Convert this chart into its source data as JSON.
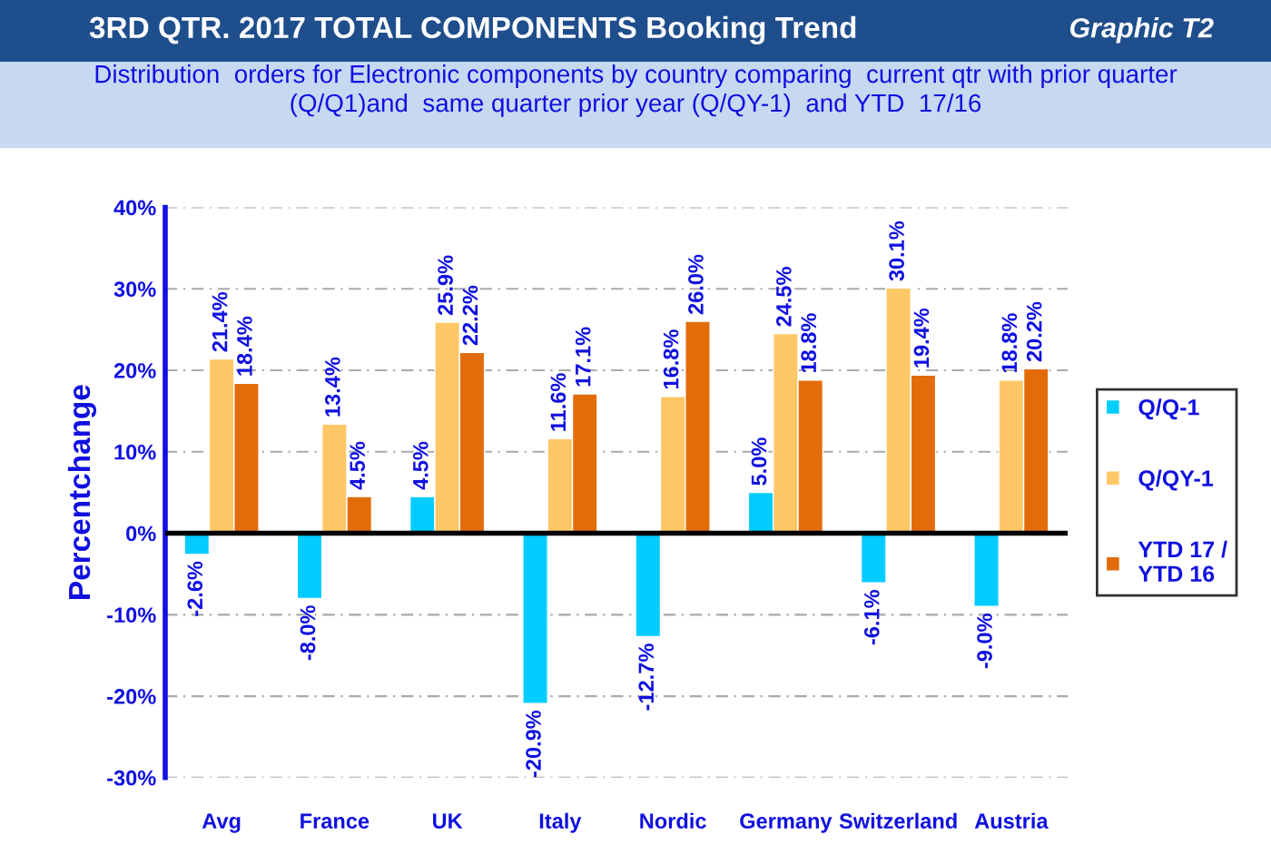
{
  "chart_data": {
    "type": "bar",
    "title": "3RD QTR. 2017 TOTAL COMPONENTS Booking Trend",
    "subtitle": "Distribution  orders for Electronic components by country comparing  current qtr with prior quarter\n(Q/Q1)and  same quarter prior year (Q/QY-1)  and YTD  17/16",
    "annotations": [
      "Graphic T2"
    ],
    "ylabel": "Percentchange",
    "categories": [
      "Avg",
      "France",
      "UK",
      "Italy",
      "Nordic",
      "Germany",
      "Switzerland",
      "Austria"
    ],
    "series": [
      {
        "name": "Q/Q-1",
        "color": "#00ccff",
        "values": [
          -2.6,
          -8.0,
          4.5,
          -20.9,
          -12.7,
          5.0,
          -6.1,
          -9.0
        ],
        "value_labels": [
          "-2.6%",
          "-8.0%",
          "4.5%",
          "-20.9%",
          "-12.7%",
          "5.0%",
          "-6.1%",
          "-9.0%"
        ]
      },
      {
        "name": "Q/QY-1",
        "color": "#ffc766",
        "values": [
          21.4,
          13.4,
          25.9,
          11.6,
          16.8,
          24.5,
          30.1,
          18.8
        ],
        "value_labels": [
          "21.4%",
          "13.4%",
          "25.9%",
          "11.6%",
          "16.8%",
          "24.5%",
          "30.1%",
          "18.8%"
        ]
      },
      {
        "name": "YTD 17 /\nYTD 16",
        "color": "#e36c0a",
        "values": [
          18.4,
          4.5,
          22.2,
          17.1,
          26.0,
          18.8,
          19.4,
          20.2
        ],
        "value_labels": [
          "18.4%",
          "4.5%",
          "22.2%",
          "17.1%",
          "26.0%",
          "18.8%",
          "19.4%",
          "20.2%"
        ]
      }
    ],
    "ylim": [
      -30,
      40
    ],
    "yticks": [
      {
        "value": -30,
        "label": "-30%"
      },
      {
        "value": -20,
        "label": "-20%"
      },
      {
        "value": -10,
        "label": "-10%"
      },
      {
        "value": 0,
        "label": "0%"
      },
      {
        "value": 10,
        "label": "10%"
      },
      {
        "value": 20,
        "label": "20%"
      },
      {
        "value": 30,
        "label": "30%"
      },
      {
        "value": 40,
        "label": "40%"
      }
    ],
    "grid": "y",
    "legend": "right"
  }
}
